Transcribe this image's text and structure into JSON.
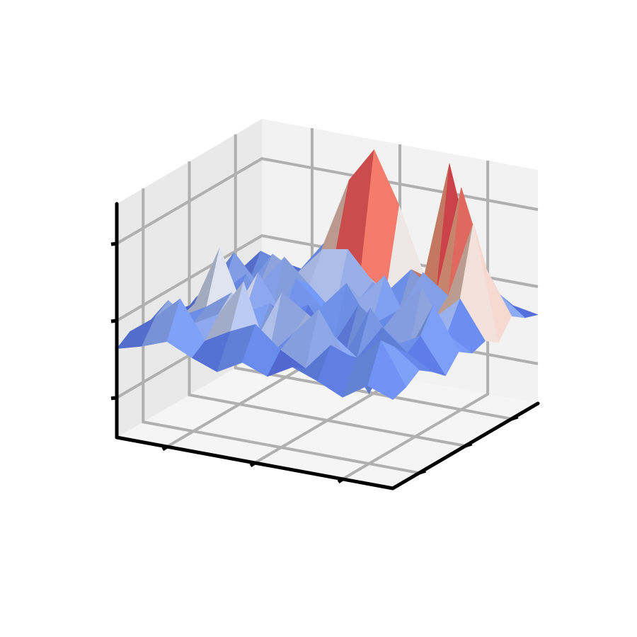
{
  "chart_data": {
    "type": "surface",
    "title": "",
    "xlabel": "",
    "ylabel": "",
    "zlabel": "",
    "colormap": "coolwarm",
    "grid": true,
    "tick_labels_shown": false,
    "colors": {
      "pane_left": "#e9e9e9",
      "pane_back": "#f2f2f2",
      "pane_floor": "#f5f5f5",
      "grid": "#b0b0b0",
      "axis": "#000000",
      "cold": "#3b4cc0",
      "neutral": "#dddddd",
      "hot": "#b40426"
    },
    "x": [
      0,
      1,
      2,
      3,
      4,
      5,
      6,
      7,
      8,
      9,
      10,
      11
    ],
    "y": [
      0,
      1,
      2,
      3,
      4,
      5,
      6,
      7,
      8,
      9,
      10,
      11
    ],
    "xlim": [
      0,
      11
    ],
    "ylim": [
      0,
      11
    ],
    "zlim": [
      0,
      1
    ],
    "z": [
      [
        0.38,
        0.42,
        0.35,
        0.4,
        0.44,
        0.38,
        0.42,
        0.36,
        0.4,
        0.45,
        0.41,
        0.38
      ],
      [
        0.4,
        0.58,
        0.48,
        0.52,
        0.4,
        0.46,
        0.55,
        0.5,
        0.44,
        0.6,
        0.5,
        0.42
      ],
      [
        0.44,
        0.52,
        0.3,
        0.45,
        0.62,
        0.5,
        0.38,
        0.68,
        0.52,
        0.46,
        0.54,
        0.4
      ],
      [
        0.4,
        0.46,
        0.55,
        0.4,
        0.48,
        0.55,
        0.62,
        0.4,
        0.58,
        0.5,
        0.44,
        0.38
      ],
      [
        0.35,
        0.5,
        0.44,
        0.58,
        0.36,
        0.46,
        0.4,
        0.52,
        0.46,
        0.72,
        0.46,
        0.4
      ],
      [
        0.42,
        0.6,
        0.38,
        0.46,
        0.54,
        0.35,
        0.5,
        0.44,
        0.6,
        0.4,
        0.5,
        0.36
      ],
      [
        0.38,
        0.44,
        0.62,
        0.5,
        0.42,
        0.58,
        0.46,
        0.56,
        0.38,
        0.54,
        0.44,
        0.4
      ],
      [
        0.4,
        0.56,
        0.46,
        0.4,
        0.6,
        0.48,
        0.4,
        0.5,
        0.6,
        0.46,
        0.58,
        0.42
      ],
      [
        0.36,
        0.46,
        0.52,
        0.6,
        0.4,
        0.52,
        0.64,
        0.42,
        0.5,
        0.56,
        0.4,
        0.38
      ],
      [
        0.44,
        0.62,
        0.4,
        0.48,
        0.56,
        0.44,
        0.52,
        0.58,
        0.44,
        0.48,
        0.52,
        0.4
      ],
      [
        0.4,
        0.48,
        0.58,
        0.42,
        0.5,
        0.6,
        0.4,
        0.5,
        0.56,
        0.42,
        0.46,
        0.38
      ],
      [
        0.38,
        0.4,
        0.44,
        0.4,
        0.42,
        0.38,
        0.44,
        0.4,
        0.42,
        0.38,
        0.4,
        0.36
      ]
    ],
    "peaks": [
      {
        "x": 1,
        "y": 8,
        "z": 0.85
      },
      {
        "x": 2,
        "y": 9,
        "z": 0.95
      },
      {
        "x": 3,
        "y": 10,
        "z": 1.0
      },
      {
        "x": 6,
        "y": 10,
        "z": 1.0
      },
      {
        "x": 5,
        "y": 10,
        "z": 0.78
      },
      {
        "x": 7,
        "y": 10,
        "z": 0.85
      },
      {
        "x": 7,
        "y": 8,
        "z": 0.62
      }
    ]
  }
}
